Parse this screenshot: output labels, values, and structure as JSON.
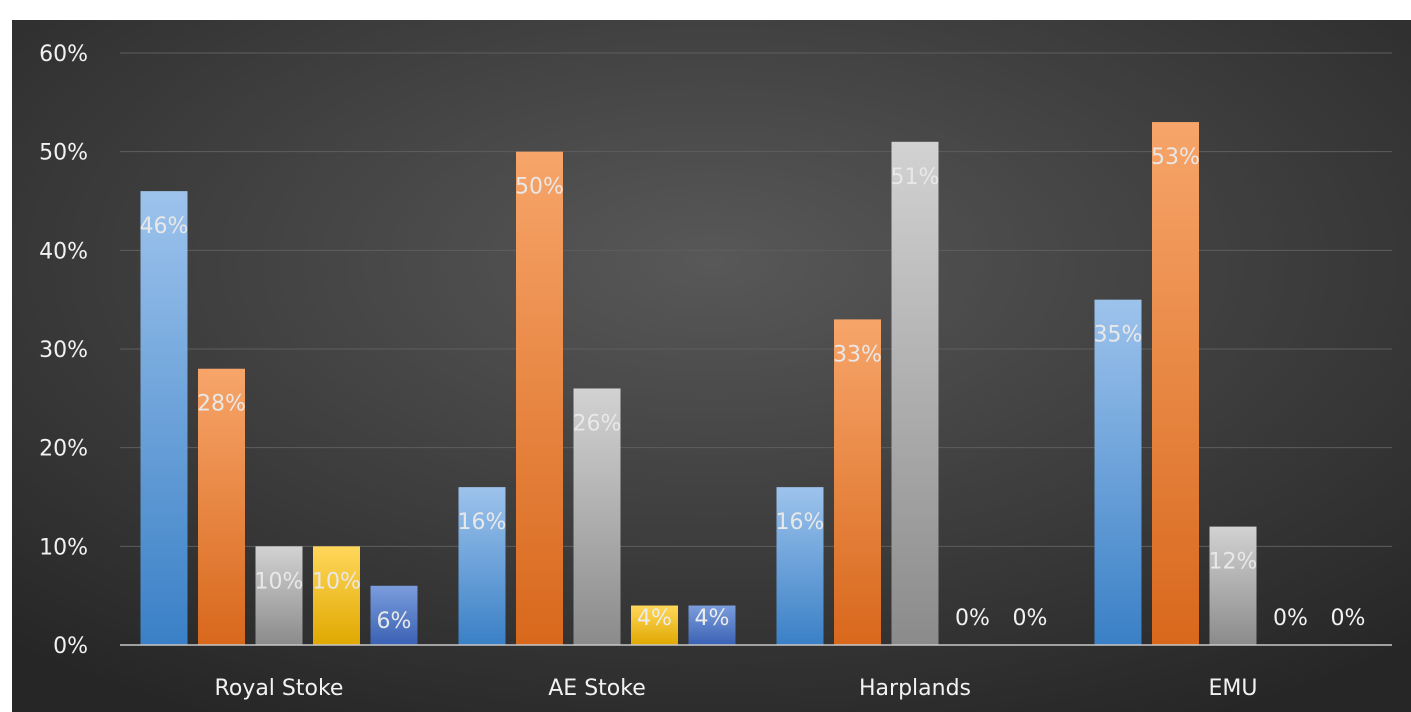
{
  "chart_data": {
    "type": "bar",
    "categories": [
      "Royal Stoke",
      "AE Stoke",
      "Harplands",
      "EMU"
    ],
    "series": [
      {
        "values": [
          46,
          16,
          16,
          35
        ],
        "color": "#5b9bd5",
        "labels": [
          "46%",
          "16%",
          "16%",
          "35%"
        ]
      },
      {
        "values": [
          28,
          50,
          33,
          53
        ],
        "color": "#ed7d31",
        "labels": [
          "28%",
          "50%",
          "33%",
          "53%"
        ]
      },
      {
        "values": [
          10,
          26,
          51,
          12
        ],
        "color": "#a5a5a5",
        "labels": [
          "10%",
          "26%",
          "51%",
          "12%"
        ]
      },
      {
        "values": [
          10,
          4,
          0,
          0
        ],
        "color": "#ffc000",
        "labels": [
          "10%",
          "4%",
          "0%",
          "0%"
        ]
      },
      {
        "values": [
          6,
          4,
          0,
          0
        ],
        "color": "#4472c4",
        "labels": [
          "6%",
          "4%",
          "0%",
          "0%"
        ]
      }
    ],
    "y_ticks": [
      "0%",
      "10%",
      "20%",
      "30%",
      "40%",
      "50%",
      "60%"
    ],
    "ylim": [
      0,
      60
    ],
    "grid": true,
    "legend": false,
    "background": "#404040",
    "title": "",
    "xlabel": "",
    "ylabel": ""
  }
}
